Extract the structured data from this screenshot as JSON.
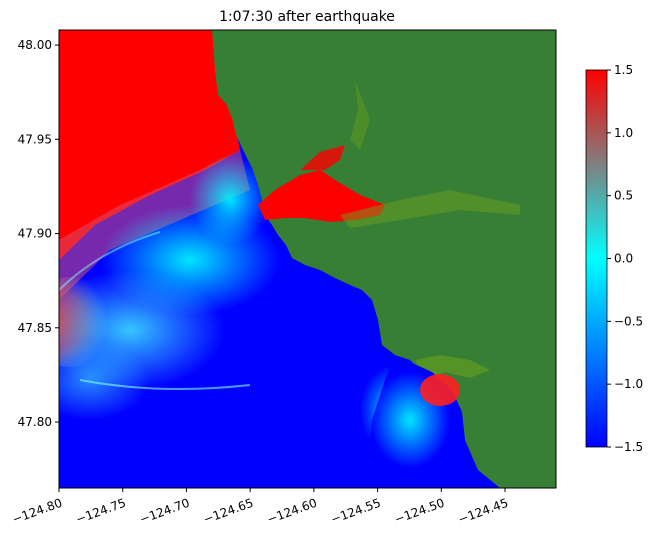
{
  "chart_data": {
    "type": "heatmap",
    "title": "1:07:30 after earthquake",
    "xlabel": "",
    "ylabel": "",
    "xlim": [
      -124.8,
      -124.41
    ],
    "ylim": [
      47.765,
      48.008
    ],
    "x_ticks": [
      -124.8,
      -124.75,
      -124.7,
      -124.65,
      -124.6,
      -124.55,
      -124.5,
      -124.45
    ],
    "x_tick_labels": [
      "−124.80",
      "−124.75",
      "−124.70",
      "−124.65",
      "−124.60",
      "−124.55",
      "−124.50",
      "−124.45"
    ],
    "y_ticks": [
      47.8,
      47.85,
      47.9,
      47.95,
      48.0
    ],
    "y_tick_labels": [
      "47.80",
      "47.85",
      "47.90",
      "47.95",
      "48.00"
    ],
    "colorbar": {
      "range": [
        -1.5,
        1.5
      ],
      "ticks": [
        1.5,
        1.0,
        0.5,
        0.0,
        -0.5,
        -1.0,
        -1.5
      ],
      "tick_labels": [
        "1.5",
        "1.0",
        "0.5",
        "0.0",
        "−0.5",
        "−1.0",
        "−1.5"
      ],
      "colors": [
        "#0000ff",
        "#00ffff",
        "#ff0000"
      ]
    },
    "land_color": "#367f34",
    "grid": false
  }
}
